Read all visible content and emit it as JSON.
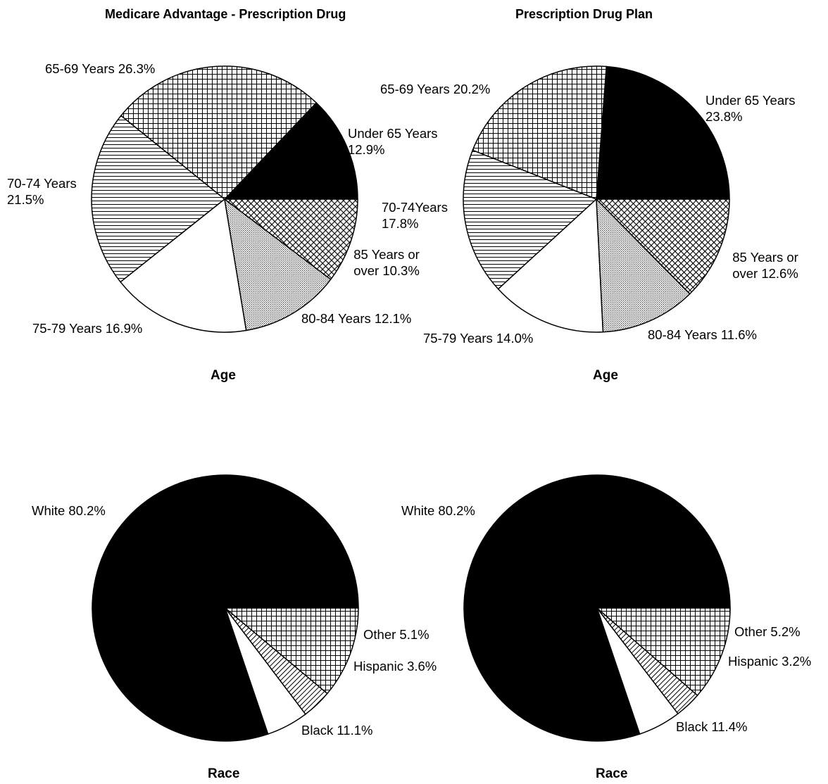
{
  "titles": {
    "left": "Medicare Advantage - Prescription Drug",
    "right": "Prescription Drug Plan"
  },
  "colors": {
    "solid": "#000000",
    "outline": "#000000",
    "background": "#ffffff"
  },
  "chart_data": [
    {
      "type": "pie",
      "title": "Medicare Advantage - Prescription Drug",
      "xlabel": "Age",
      "slices": [
        {
          "label": "Under 65 Years 12.9%",
          "value": 12.9,
          "pattern": "solid"
        },
        {
          "label": "65-69 Years 26.3%",
          "value": 26.3,
          "pattern": "crosshatch-coarse"
        },
        {
          "label": "70-74 Years 21.5%",
          "value": 21.5,
          "pattern": "horizontal-lines"
        },
        {
          "label": "75-79 Years 16.9%",
          "value": 16.9,
          "pattern": "white"
        },
        {
          "label": "80-84 Years 12.1%",
          "value": 12.1,
          "pattern": "fine-dots"
        },
        {
          "label": "85 Years or over 10.3%",
          "value": 10.3,
          "pattern": "diagonal-crosshatch"
        }
      ]
    },
    {
      "type": "pie",
      "title": "Prescription Drug Plan",
      "xlabel": "Age",
      "slices": [
        {
          "label": "Under 65 Years 23.8%",
          "value": 23.8,
          "pattern": "solid"
        },
        {
          "label": "65-69 Years 20.2%",
          "value": 20.2,
          "pattern": "crosshatch-coarse"
        },
        {
          "label": "70-74Years 17.8%",
          "value": 17.8,
          "pattern": "horizontal-lines"
        },
        {
          "label": "75-79 Years 14.0%",
          "value": 14.0,
          "pattern": "white"
        },
        {
          "label": "80-84 Years 11.6%",
          "value": 11.6,
          "pattern": "fine-dots"
        },
        {
          "label": "85 Years or over 12.6%",
          "value": 12.6,
          "pattern": "diagonal-crosshatch"
        }
      ]
    },
    {
      "type": "pie",
      "title": "",
      "xlabel": "Race",
      "slices": [
        {
          "label": "White 80.2%",
          "value": 80.2,
          "pattern": "solid"
        },
        {
          "label": "Other 5.1%",
          "value": 5.1,
          "pattern": "white"
        },
        {
          "label": "Hispanic 3.6%",
          "value": 3.6,
          "pattern": "diagonal-lines"
        },
        {
          "label": "Black 11.1%",
          "value": 11.1,
          "pattern": "crosshatch-coarse"
        }
      ]
    },
    {
      "type": "pie",
      "title": "",
      "xlabel": "Race",
      "slices": [
        {
          "label": "White 80.2%",
          "value": 80.2,
          "pattern": "solid"
        },
        {
          "label": "Other 5.2%",
          "value": 5.2,
          "pattern": "white"
        },
        {
          "label": "Hispanic 3.2%",
          "value": 3.2,
          "pattern": "diagonal-lines"
        },
        {
          "label": "Black 11.4%",
          "value": 11.4,
          "pattern": "crosshatch-coarse"
        }
      ]
    }
  ]
}
